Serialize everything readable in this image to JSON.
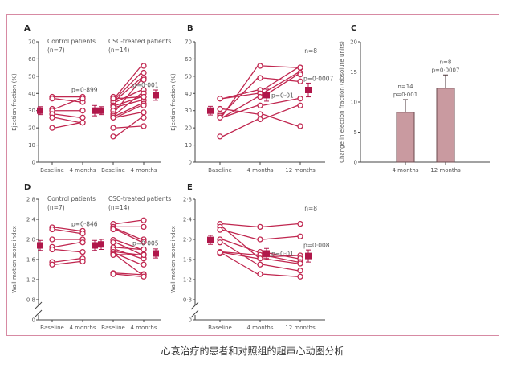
{
  "caption": "心衰治疗的患者和对照组的超声心动图分析",
  "colors": {
    "line": "#c0264f",
    "mean": "#b0174a",
    "bar": "#c99aa0",
    "axis": "#444444",
    "frame": "#d78aa3",
    "text": "#555555"
  },
  "chart_data": [
    {
      "panel": "A",
      "type": "line",
      "ylabel": "Ejection fraction (%)",
      "ylim": [
        0,
        70
      ],
      "yticks": [
        0,
        10,
        20,
        30,
        40,
        50,
        60,
        70
      ],
      "xtick_labels": [
        "Baseline",
        "4 months",
        "Baseline",
        "4 months"
      ],
      "groups": [
        {
          "title": "Control patients",
          "n_label": "(n=7)",
          "p_label": "p=0·899",
          "subjects": [
            [
              38,
              38
            ],
            [
              37,
              35
            ],
            [
              31,
              37
            ],
            [
              30,
              30
            ],
            [
              28,
              26
            ],
            [
              26,
              23
            ],
            [
              20,
              23
            ]
          ],
          "mean": {
            "baseline": 30,
            "baseline_err": 2.3,
            "followup": 30,
            "followup_err": 3
          }
        },
        {
          "title": "CSC-treated patients",
          "n_label": "(n=14)",
          "p_label": "p=0·001",
          "subjects": [
            [
              38,
              56
            ],
            [
              37,
              52
            ],
            [
              36,
              49
            ],
            [
              35,
              42
            ],
            [
              33,
              38
            ],
            [
              32,
              36
            ],
            [
              30,
              48
            ],
            [
              28,
              40
            ],
            [
              27,
              34
            ],
            [
              26,
              29
            ],
            [
              26,
              33
            ],
            [
              20,
              21
            ],
            [
              15,
              26
            ],
            [
              37,
              38
            ]
          ],
          "mean": {
            "baseline": 30,
            "baseline_err": 2.3,
            "followup": 39,
            "followup_err": 3
          }
        }
      ]
    },
    {
      "panel": "B",
      "type": "line",
      "ylabel": "Ejection fraction (%)",
      "ylim": [
        0,
        70
      ],
      "yticks": [
        0,
        10,
        20,
        30,
        40,
        50,
        60,
        70
      ],
      "xtick_labels": [
        "Baseline",
        "4 months",
        "12 months"
      ],
      "n_label": "n=8",
      "p_labels": [
        "p=0·01",
        "p=0·0007"
      ],
      "subjects": [
        [
          37,
          42,
          55
        ],
        [
          37,
          40,
          52
        ],
        [
          31,
          28,
          21
        ],
        [
          28,
          49,
          47
        ],
        [
          27,
          56,
          55
        ],
        [
          26,
          38,
          51
        ],
        [
          26,
          33,
          37
        ],
        [
          15,
          25,
          33
        ]
      ],
      "mean": {
        "points": [
          30,
          39,
          42
        ],
        "errs": [
          2.5,
          3.5,
          4
        ]
      }
    },
    {
      "panel": "C",
      "type": "bar",
      "ylabel": "Change in ejection fraction (absolute units)",
      "ylim": [
        0,
        20
      ],
      "yticks": [
        0,
        5,
        10,
        15,
        20
      ],
      "categories": [
        "4 months",
        "12 months"
      ],
      "values": [
        8.3,
        12.3
      ],
      "errors": [
        2.1,
        2.2
      ],
      "annotations": [
        [
          "n=14",
          "p=0·001"
        ],
        [
          "n=8",
          "p=0·0007"
        ]
      ]
    },
    {
      "panel": "D",
      "type": "line",
      "ylabel": "Wall motion score index",
      "ylim": [
        0,
        2.8
      ],
      "yticks": [
        0,
        0.8,
        1.2,
        1.6,
        2.0,
        2.4,
        2.8
      ],
      "ytick_labels": [
        "0",
        "0·8",
        "1·2",
        "1·6",
        "2·0",
        "2·4",
        "2·8"
      ],
      "axis_break": true,
      "xtick_labels": [
        "Baseline",
        "4 months",
        "Baseline",
        "4 months"
      ],
      "groups": [
        {
          "title": "Control patients",
          "n_label": "(n=7)",
          "p_label": "p=0·846",
          "subjects": [
            [
              2.24,
              2.17
            ],
            [
              2.2,
              2.12
            ],
            [
              2.0,
              2.0
            ],
            [
              1.85,
              1.94
            ],
            [
              1.8,
              1.75
            ],
            [
              1.55,
              1.62
            ],
            [
              1.5,
              1.56
            ]
          ],
          "mean": {
            "baseline": 1.88,
            "baseline_err": 0.1,
            "followup": 1.88,
            "followup_err": 0.1
          }
        },
        {
          "title": "CSC-treated patients",
          "n_label": "(n=14)",
          "p_label": "p=0·005",
          "subjects": [
            [
              2.31,
              2.38
            ],
            [
              2.25,
              2.25
            ],
            [
              2.22,
              2.0
            ],
            [
              2.2,
              1.95
            ],
            [
              1.99,
              1.8
            ],
            [
              1.94,
              1.7
            ],
            [
              1.84,
              1.8
            ],
            [
              1.8,
              1.62
            ],
            [
              1.75,
              1.69
            ],
            [
              1.72,
              1.5
            ],
            [
              1.7,
              1.69
            ],
            [
              1.69,
              1.31
            ],
            [
              1.33,
              1.3
            ],
            [
              1.31,
              1.26
            ]
          ],
          "mean": {
            "baseline": 1.9,
            "baseline_err": 0.1,
            "followup": 1.72,
            "followup_err": 0.09
          }
        }
      ]
    },
    {
      "panel": "E",
      "type": "line",
      "ylabel": "Wall motion score index",
      "ylim": [
        0,
        2.8
      ],
      "yticks": [
        0,
        0.8,
        1.2,
        1.6,
        2.0,
        2.4,
        2.8
      ],
      "ytick_labels": [
        "0",
        "0·8",
        "1·2",
        "1·6",
        "2·0",
        "2·4",
        "2·8"
      ],
      "axis_break": true,
      "xtick_labels": [
        "Baseline",
        "4 months",
        "12 months"
      ],
      "n_label": "n=8",
      "p_labels": [
        "p=0·01",
        "p=0·008"
      ],
      "subjects": [
        [
          2.31,
          2.25,
          2.31
        ],
        [
          2.25,
          1.65,
          1.68
        ],
        [
          2.19,
          2.0,
          2.06
        ],
        [
          2.0,
          1.75,
          1.62
        ],
        [
          1.94,
          1.5,
          1.38
        ],
        [
          1.75,
          1.69,
          1.55
        ],
        [
          1.72,
          1.31,
          1.26
        ],
        [
          1.74,
          1.62,
          1.52
        ]
      ],
      "mean": {
        "points": [
          1.99,
          1.72,
          1.67
        ],
        "errs": [
          0.09,
          0.1,
          0.12
        ]
      }
    }
  ]
}
